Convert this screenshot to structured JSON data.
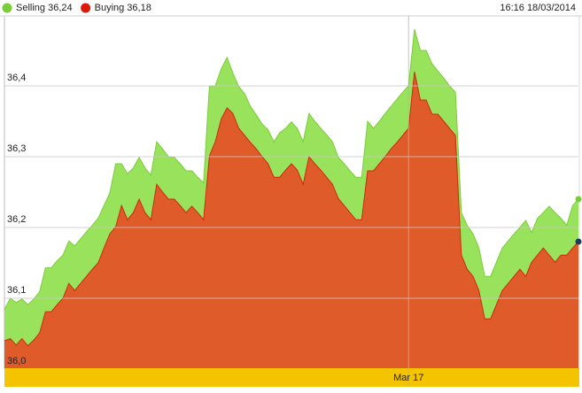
{
  "chart_data": {
    "type": "area",
    "timestamp": "16:16 18/03/2014",
    "categories": [
      null,
      null,
      null,
      null,
      null,
      null,
      null,
      null,
      null,
      null,
      null,
      null,
      null,
      null,
      null,
      null,
      null,
      null,
      null,
      null,
      null,
      null,
      null,
      null,
      null,
      null,
      null,
      null,
      null,
      null,
      null,
      null,
      null,
      null,
      null,
      null,
      null,
      null,
      null,
      null,
      null,
      null,
      null,
      null,
      null,
      null,
      null,
      null,
      null,
      null,
      null,
      null,
      null,
      null,
      null,
      null,
      null,
      null,
      null,
      null,
      null,
      null,
      null,
      null,
      null,
      null,
      null,
      null,
      null,
      "Mar 17",
      null,
      null,
      null,
      null,
      null,
      null,
      null,
      null,
      null,
      null,
      null,
      null,
      null,
      null,
      null,
      null,
      null,
      null,
      null,
      null,
      null,
      null,
      null,
      null,
      null,
      null,
      null,
      null,
      null
    ],
    "series": [
      {
        "name": "Selling 36,24",
        "color": "#99e35c",
        "line_color": "#7acc3a",
        "values": [
          36.084,
          36.1,
          36.094,
          36.099,
          36.091,
          36.099,
          36.109,
          36.143,
          36.143,
          36.153,
          36.161,
          36.181,
          36.174,
          36.184,
          36.194,
          36.203,
          36.213,
          36.231,
          36.249,
          36.29,
          36.29,
          36.276,
          36.284,
          36.299,
          36.284,
          36.274,
          36.321,
          36.311,
          36.3,
          36.299,
          36.29,
          36.28,
          36.28,
          36.271,
          36.263,
          36.4,
          36.4,
          36.424,
          36.44,
          36.418,
          36.399,
          36.389,
          36.371,
          36.359,
          36.346,
          36.338,
          36.321,
          36.334,
          36.34,
          36.349,
          36.34,
          36.321,
          36.361,
          36.35,
          36.34,
          36.331,
          36.321,
          36.299,
          36.29,
          36.28,
          36.271,
          36.271,
          36.35,
          36.34,
          36.35,
          36.361,
          36.371,
          36.381,
          36.391,
          36.4,
          36.48,
          36.45,
          36.45,
          36.431,
          36.421,
          36.411,
          36.4,
          36.391,
          36.221,
          36.203,
          36.191,
          36.171,
          36.131,
          36.131,
          36.151,
          36.171,
          36.181,
          36.191,
          36.2,
          36.21,
          36.193,
          36.213,
          36.221,
          36.23,
          36.221,
          36.213,
          36.203,
          36.231,
          36.24
        ]
      },
      {
        "name": "Buying 36,18",
        "color": "#df5b2a",
        "line_color": "#cc2a10",
        "values": [
          36.04,
          36.043,
          36.034,
          36.043,
          36.033,
          36.041,
          36.051,
          36.081,
          36.081,
          36.091,
          36.1,
          36.121,
          36.111,
          36.121,
          36.131,
          36.141,
          36.15,
          36.171,
          36.191,
          36.201,
          36.231,
          36.211,
          36.221,
          36.24,
          36.221,
          36.211,
          36.261,
          36.25,
          36.24,
          36.24,
          36.231,
          36.221,
          36.23,
          36.221,
          36.211,
          36.301,
          36.321,
          36.353,
          36.369,
          36.361,
          36.34,
          36.33,
          36.32,
          36.311,
          36.3,
          36.29,
          36.271,
          36.271,
          36.281,
          36.29,
          36.281,
          36.261,
          36.3,
          36.29,
          36.281,
          36.271,
          36.261,
          36.241,
          36.231,
          36.221,
          36.211,
          36.211,
          36.28,
          36.28,
          36.29,
          36.3,
          36.311,
          36.32,
          36.33,
          36.34,
          36.42,
          36.38,
          36.38,
          36.36,
          36.36,
          36.35,
          36.34,
          36.33,
          36.161,
          36.141,
          36.131,
          36.111,
          36.071,
          36.071,
          36.091,
          36.111,
          36.121,
          36.131,
          36.141,
          36.131,
          36.151,
          36.161,
          36.171,
          36.161,
          36.151,
          36.161,
          36.161,
          36.171,
          36.18
        ]
      }
    ],
    "ylim": [
      36.0,
      36.5
    ],
    "yticks": [
      {
        "value": 36.0,
        "label": "36,0"
      },
      {
        "value": 36.1,
        "label": "36,1"
      },
      {
        "value": 36.2,
        "label": "36,2"
      },
      {
        "value": 36.3,
        "label": "36,3"
      },
      {
        "value": 36.4,
        "label": "36,4"
      }
    ],
    "grid": true
  }
}
